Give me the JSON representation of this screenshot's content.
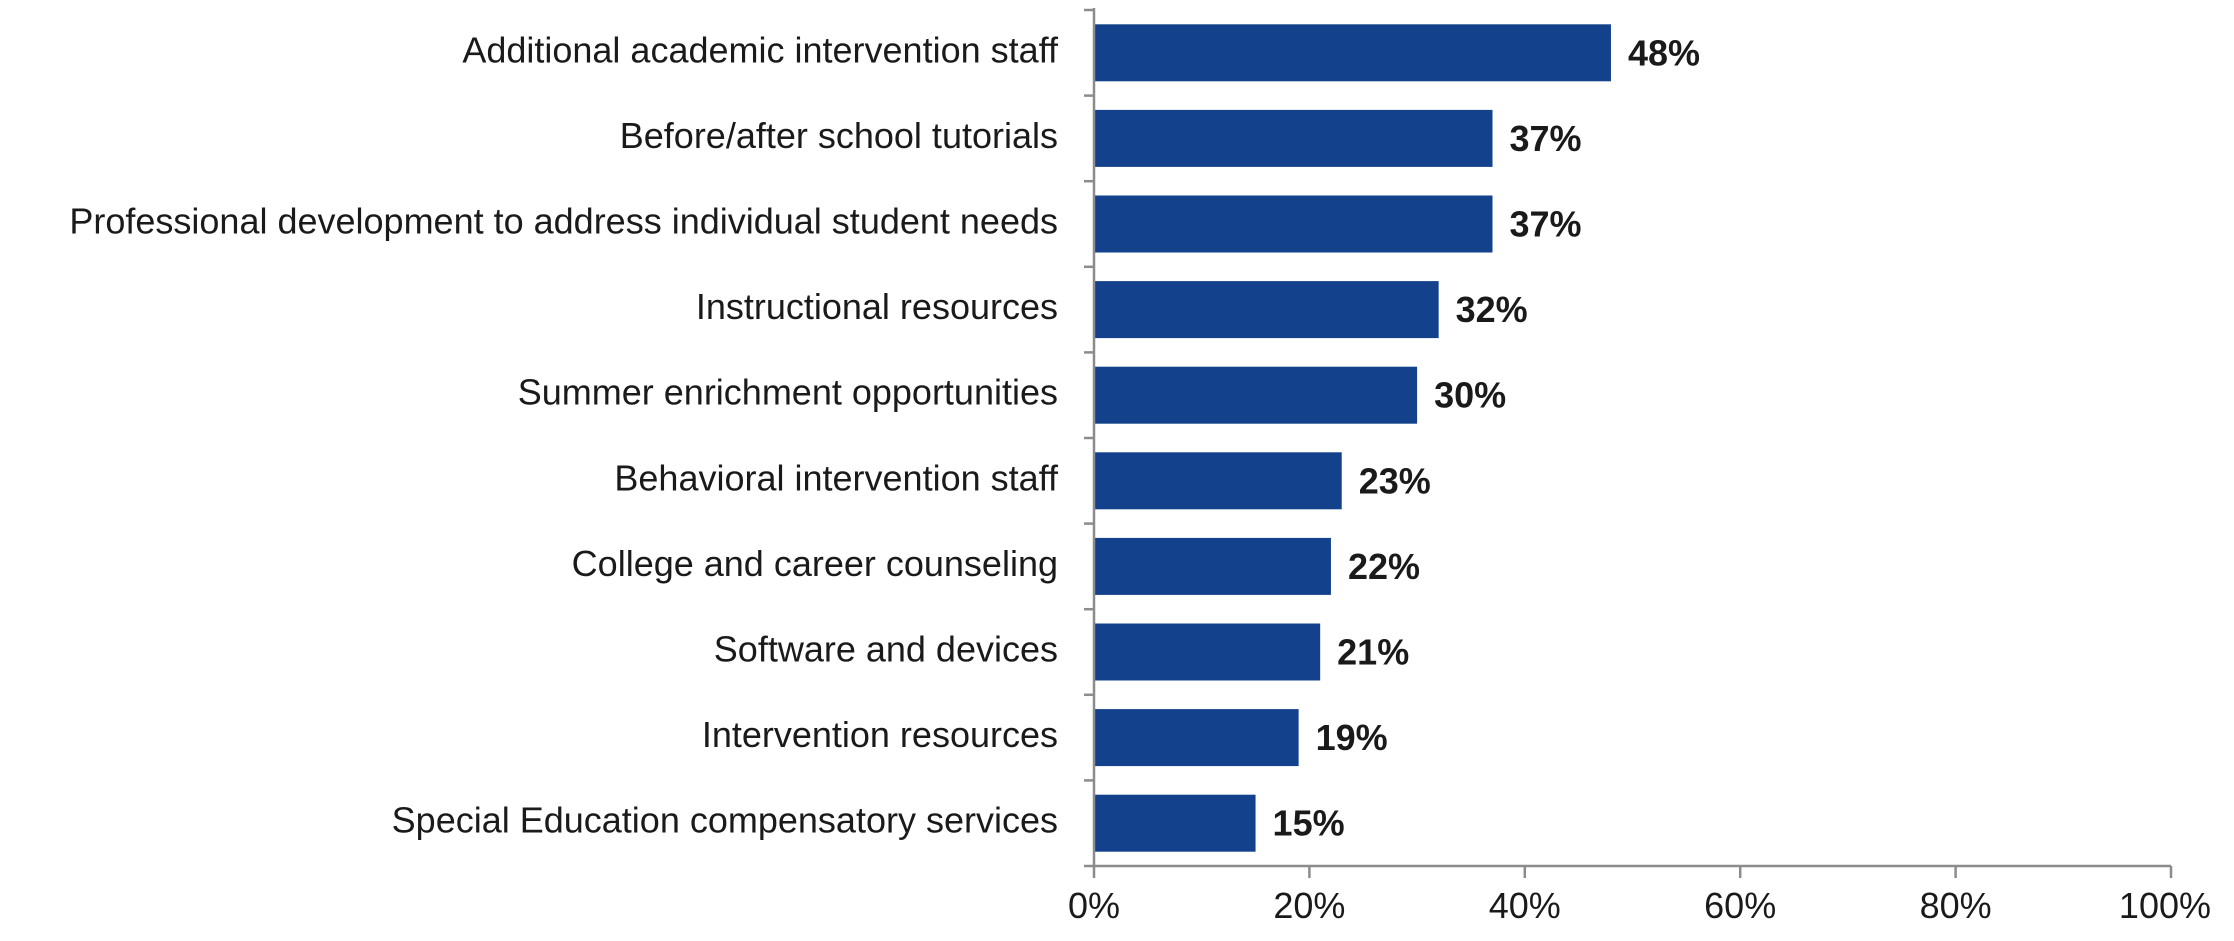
{
  "chart_data": {
    "type": "bar",
    "orientation": "horizontal",
    "title": "",
    "xlabel": "",
    "ylabel": "",
    "categories": [
      "Additional academic intervention staff",
      "Before/after school tutorials",
      "Professional development to address individual student needs",
      "Instructional resources",
      "Summer enrichment opportunities",
      "Behavioral intervention staff",
      "College and career counseling",
      "Software and devices",
      "Intervention resources",
      "Special Education compensatory services"
    ],
    "values": [
      48,
      37,
      37,
      32,
      30,
      23,
      22,
      21,
      19,
      15
    ],
    "value_labels": [
      "48%",
      "37%",
      "37%",
      "32%",
      "30%",
      "23%",
      "22%",
      "21%",
      "19%",
      "15%"
    ],
    "xlim": [
      0,
      100
    ],
    "x_ticks": [
      0,
      20,
      40,
      60,
      80,
      100
    ],
    "x_tick_labels": [
      "0%",
      "20%",
      "40%",
      "60%",
      "80%",
      "100%"
    ],
    "bar_color": "#13418c",
    "grid": false,
    "legend": "none"
  }
}
